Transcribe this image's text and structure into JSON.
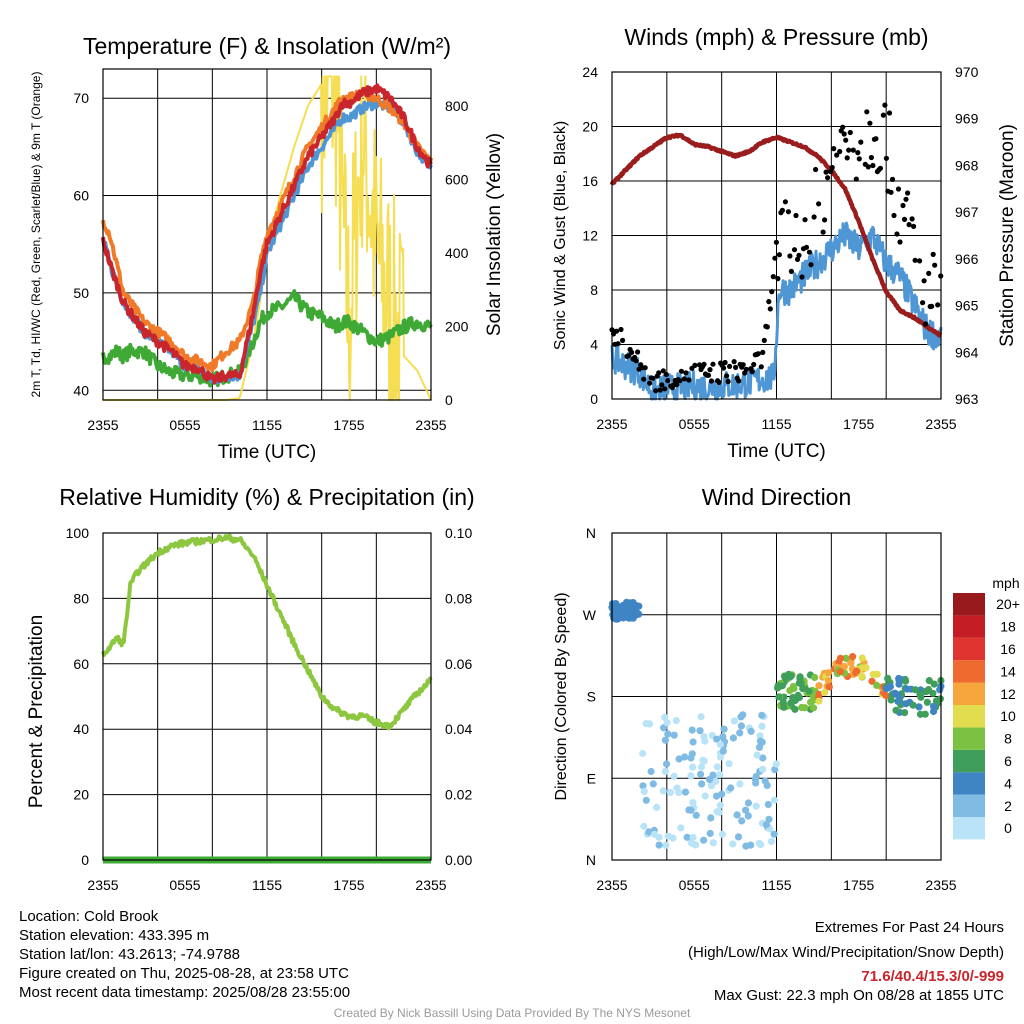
{
  "figure": {
    "footer_left": [
      "Location: Cold Brook",
      "Station elevation: 433.395 m",
      "Station lat/lon: 43.2613; -74.9788",
      "Figure created on Thu, 2025-08-28, at 23:58 UTC",
      "Most recent data timestamp: 2025/08/28 23:55:00"
    ],
    "extremes_title": "Extremes For Past 24 Hours",
    "extremes_subtitle": "(High/Low/Max Wind/Precipitation/Snow Depth)",
    "extremes_values": "71.6/40.4/15.3/0/-999",
    "max_gust": "Max Gust: 22.3 mph On 08/28 at 1855 UTC",
    "credit": "Created By Nick Bassill Using Data Provided By The NYS Mesonet"
  },
  "chart_data": [
    {
      "type": "line",
      "title": "Temperature (F) & Insolation (W/m²)",
      "xlabel": "Time (UTC)",
      "ylabel": "2m T, Td, HI/WC (Red, Green, Scarlet/Blue) & 9m T (Orange)",
      "ylabel2": "Solar Insolation (Yellow)",
      "x_ticks": [
        "2355",
        "0555",
        "1155",
        "1755",
        "2355"
      ],
      "ylim": [
        39,
        73
      ],
      "y_ticks": [
        40,
        50,
        60,
        70
      ],
      "y2lim": [
        0,
        900
      ],
      "y2_ticks": [
        0,
        200,
        400,
        600,
        800
      ],
      "x_hours": [
        0,
        0.5,
        1,
        1.5,
        2,
        3,
        4,
        5,
        6,
        7,
        8,
        9,
        10,
        11,
        11.5,
        12,
        13,
        14,
        15,
        16,
        17,
        17.5,
        18,
        19,
        20,
        21,
        22,
        23,
        24
      ],
      "series": [
        {
          "name": "2m T",
          "color": "#c8252c",
          "axis": "left",
          "values": [
            55.5,
            53,
            51,
            49,
            48,
            46,
            45,
            44,
            42.5,
            42.3,
            41,
            41.5,
            41.5,
            48,
            52,
            55,
            58,
            61,
            64,
            66,
            68,
            69.5,
            69.5,
            70.5,
            71,
            70,
            68,
            65,
            63
          ]
        },
        {
          "name": "9m T",
          "color": "#f07a28",
          "axis": "left",
          "values": [
            57.5,
            56,
            53,
            50,
            49,
            47,
            46,
            45,
            43.5,
            43,
            42.5,
            44,
            45,
            49,
            53,
            56,
            59,
            62,
            65,
            67,
            69,
            70,
            70,
            70.5,
            70,
            69,
            67.5,
            65,
            63.5
          ]
        },
        {
          "name": "Td",
          "color": "#3fa935",
          "axis": "left",
          "values": [
            43.5,
            43.5,
            44,
            43.5,
            44,
            44,
            42.5,
            41.8,
            41.5,
            41.5,
            41,
            41.5,
            41.8,
            45,
            47,
            48,
            48.5,
            49.5,
            48,
            47.5,
            46.5,
            47,
            47,
            46,
            45,
            45.5,
            46.5,
            47,
            46.5
          ]
        },
        {
          "name": "HI/WC",
          "color": "#4f96d4",
          "axis": "left",
          "values": [
            55.5,
            53,
            51,
            49,
            48,
            46,
            45,
            44,
            42.5,
            42.3,
            41,
            41.5,
            41.5,
            47,
            50,
            54,
            57,
            60,
            63,
            65,
            67,
            68,
            68,
            69,
            69.5,
            69,
            67.5,
            64.5,
            63
          ]
        },
        {
          "name": "Insolation",
          "color": "#f5de53",
          "axis": "right",
          "values": [
            0,
            0,
            0,
            0,
            0,
            0,
            0,
            0,
            0,
            0,
            0,
            0,
            5,
            160,
            270,
            420,
            560,
            690,
            800,
            860,
            870,
            500,
            200,
            750,
            400,
            250,
            120,
            80,
            0
          ]
        }
      ]
    },
    {
      "type": "line",
      "title": "Winds (mph) & Pressure (mb)",
      "xlabel": "Time (UTC)",
      "ylabel": "Sonic Wind & Gust (Blue, Black)",
      "ylabel2": "Station Pressure (Maroon)",
      "x_ticks": [
        "2355",
        "0555",
        "1155",
        "1755",
        "2355"
      ],
      "ylim": [
        0,
        24
      ],
      "y_ticks": [
        0,
        4,
        8,
        12,
        16,
        20,
        24
      ],
      "y2lim": [
        963,
        970
      ],
      "y2_ticks": [
        963,
        964,
        965,
        966,
        967,
        968,
        969,
        970
      ],
      "series": [
        {
          "name": "Pressure",
          "color": "#9a1d1d",
          "axis": "right",
          "x_hours": [
            0,
            1,
            2,
            3,
            4,
            5,
            6,
            7,
            8,
            9,
            10,
            11,
            12,
            13,
            14,
            15,
            16,
            17,
            18,
            19,
            20,
            21,
            22,
            23,
            24
          ],
          "values": [
            967.6,
            967.9,
            968.2,
            968.4,
            968.6,
            968.65,
            968.45,
            968.4,
            968.3,
            968.2,
            968.3,
            968.5,
            968.6,
            968.5,
            968.4,
            968.2,
            967.9,
            967.5,
            966.8,
            966.0,
            965.3,
            964.9,
            964.75,
            964.55,
            964.35
          ]
        },
        {
          "name": "Wind",
          "color": "#4f96d4",
          "axis": "left",
          "x_hours": [
            0,
            1,
            2,
            3,
            4,
            5,
            6,
            7,
            8,
            9,
            10,
            11,
            11.8,
            12.2,
            13,
            14,
            15,
            16,
            17,
            18,
            19,
            20,
            21,
            22,
            23,
            24
          ],
          "values": [
            3,
            2.5,
            2,
            0.5,
            0.8,
            0.8,
            1,
            0.8,
            1,
            1,
            1.2,
            1.5,
            1.5,
            8,
            8,
            9,
            10,
            11,
            12,
            11,
            12,
            10,
            9,
            7,
            5,
            4.5
          ]
        },
        {
          "name": "Gust",
          "color": "#000000",
          "axis": "left",
          "x_hours": [
            0,
            1,
            2,
            3,
            4,
            5,
            6,
            7,
            8,
            9,
            10,
            11,
            12,
            13,
            14,
            15,
            16,
            17,
            18,
            19,
            20,
            21,
            22,
            23,
            24
          ],
          "values": [
            5,
            4,
            2.5,
            1.3,
            1.5,
            1.8,
            2,
            1.8,
            2,
            2,
            2.3,
            3,
            11,
            11.5,
            12,
            14,
            17,
            18.5,
            19,
            20,
            19,
            14,
            11,
            8,
            7.5
          ]
        }
      ]
    },
    {
      "type": "line",
      "title": "Relative Humidity (%) & Precipitation (in)",
      "ylabel": "Percent & Precipitation",
      "x_ticks": [
        "2355",
        "0555",
        "1155",
        "1755",
        "2355"
      ],
      "ylim": [
        0,
        100
      ],
      "y_ticks": [
        0,
        20,
        40,
        60,
        80,
        100
      ],
      "y2lim": [
        0,
        0.1
      ],
      "y2_ticks": [
        "0.00",
        "0.02",
        "0.04",
        "0.06",
        "0.08",
        "0.10"
      ],
      "x_hours": [
        0,
        0.5,
        1,
        1.5,
        2,
        2.5,
        3,
        4,
        5,
        6,
        7,
        8,
        9,
        10,
        11,
        12,
        13,
        14,
        15,
        16,
        17,
        18,
        19,
        20,
        21,
        22,
        23,
        24
      ],
      "series": [
        {
          "name": "RH",
          "color": "#8dc63f",
          "axis": "left",
          "values": [
            63,
            65,
            68,
            66,
            84,
            88,
            90,
            94,
            96,
            97,
            97.5,
            98,
            98.5,
            98,
            93,
            84,
            75,
            66,
            58,
            50,
            46,
            44,
            44,
            42,
            41,
            46,
            51,
            55
          ]
        },
        {
          "name": "Precipitation",
          "color": "#3fa935",
          "axis": "right",
          "values": [
            0,
            0,
            0,
            0,
            0,
            0,
            0,
            0,
            0,
            0,
            0,
            0,
            0,
            0,
            0,
            0,
            0,
            0,
            0,
            0,
            0,
            0,
            0,
            0,
            0,
            0,
            0,
            0
          ]
        }
      ]
    },
    {
      "type": "scatter",
      "title": "Wind Direction",
      "ylabel": "Direction (Colored By Speed)",
      "x_ticks": [
        "2355",
        "0555",
        "1155",
        "1755",
        "2355"
      ],
      "y_ticks": [
        "N",
        "E",
        "S",
        "W",
        "N"
      ],
      "ylim_degrees": [
        0,
        360
      ],
      "colorbar": {
        "title": "mph",
        "labels": [
          "0",
          "2",
          "4",
          "6",
          "8",
          "10",
          "12",
          "14",
          "16",
          "18",
          "20+"
        ],
        "colors": [
          "#b9e3f7",
          "#7fbbe3",
          "#3f85c4",
          "#3e9e5a",
          "#7cc242",
          "#e2dd4e",
          "#f6a63c",
          "#ef6a2e",
          "#e0352e",
          "#c31e23",
          "#981a1d"
        ]
      },
      "groups": [
        {
          "hours": [
            0,
            2
          ],
          "dir_range": [
            265,
            285
          ],
          "speed": [
            3,
            4
          ]
        },
        {
          "hours": [
            2,
            12
          ],
          "dir_range": [
            15,
            160
          ],
          "speed": [
            0,
            2
          ]
        },
        {
          "hours": [
            12,
            15
          ],
          "dir_range": [
            165,
            205
          ],
          "speed": [
            5,
            8
          ]
        },
        {
          "hours": [
            15,
            20
          ],
          "dir_range": [
            175,
            235
          ],
          "speed": [
            8,
            15
          ]
        },
        {
          "hours": [
            20,
            24
          ],
          "dir_range": [
            160,
            200
          ],
          "speed": [
            3,
            7
          ]
        }
      ]
    }
  ]
}
